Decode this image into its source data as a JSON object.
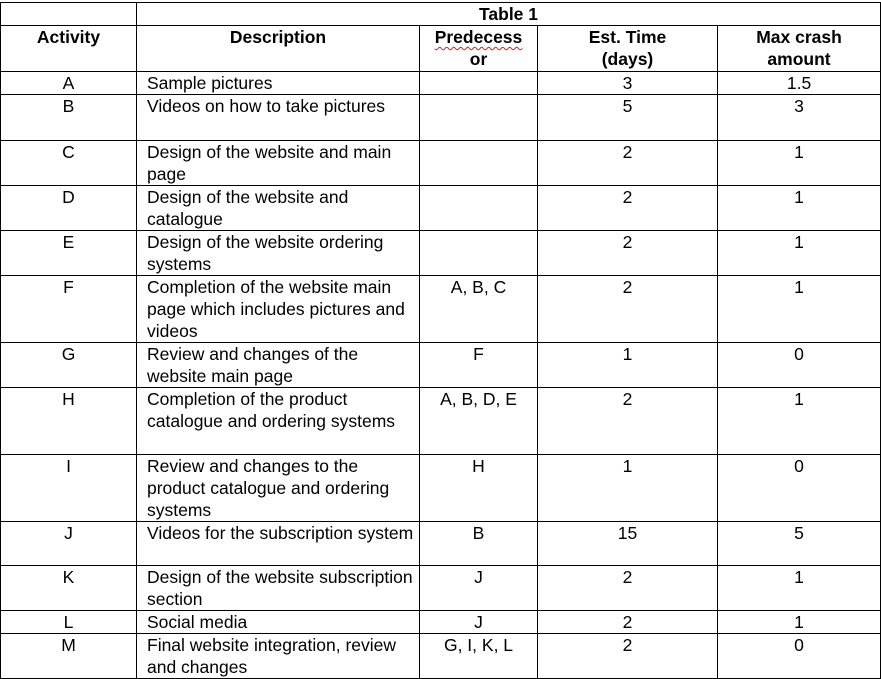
{
  "table": {
    "title": "Table 1",
    "headers": {
      "activity": "Activity",
      "description": "Description",
      "predecessor_1": "Predecess",
      "predecessor_2": "or",
      "est_time": "Est. Time (days)",
      "max_crash": "Max crash amount"
    },
    "rows": [
      {
        "activity": "A",
        "description": "Sample pictures",
        "predecessor": "",
        "est_time": "3",
        "max_crash": "1.5"
      },
      {
        "activity": "B",
        "description": "Videos on how to take pictures",
        "predecessor": "",
        "est_time": "5",
        "max_crash": "3"
      },
      {
        "activity": "C",
        "description": "Design of the website and main page",
        "predecessor": "",
        "est_time": "2",
        "max_crash": "1"
      },
      {
        "activity": "D",
        "description": "Design of the website and catalogue",
        "predecessor": "",
        "est_time": "2",
        "max_crash": "1"
      },
      {
        "activity": "E",
        "description": "Design of the website ordering systems",
        "predecessor": "",
        "est_time": "2",
        "max_crash": "1"
      },
      {
        "activity": "F",
        "description": "Completion of the website main page which includes pictures and videos",
        "predecessor": "A, B, C",
        "est_time": "2",
        "max_crash": "1"
      },
      {
        "activity": "G",
        "description": "Review and changes of the website main page",
        "predecessor": "F",
        "est_time": "1",
        "max_crash": "0"
      },
      {
        "activity": "H",
        "description": "Completion of the product catalogue and ordering systems",
        "predecessor": "A, B, D, E",
        "est_time": "2",
        "max_crash": "1"
      },
      {
        "activity": "I",
        "description": "Review and changes to the product catalogue and ordering systems",
        "predecessor": "H",
        "est_time": "1",
        "max_crash": "0"
      },
      {
        "activity": "J",
        "description": "Videos for the subscription system",
        "predecessor": "B",
        "est_time": "15",
        "max_crash": "5"
      },
      {
        "activity": "K",
        "description": "Design of the website subscription section",
        "predecessor": "J",
        "est_time": "2",
        "max_crash": "1"
      },
      {
        "activity": "L",
        "description": "Social media",
        "predecessor": "J",
        "est_time": "2",
        "max_crash": "1"
      },
      {
        "activity": "M",
        "description": "Final website integration, review and changes",
        "predecessor": "G, I, K, L",
        "est_time": "2",
        "max_crash": "0"
      }
    ]
  }
}
